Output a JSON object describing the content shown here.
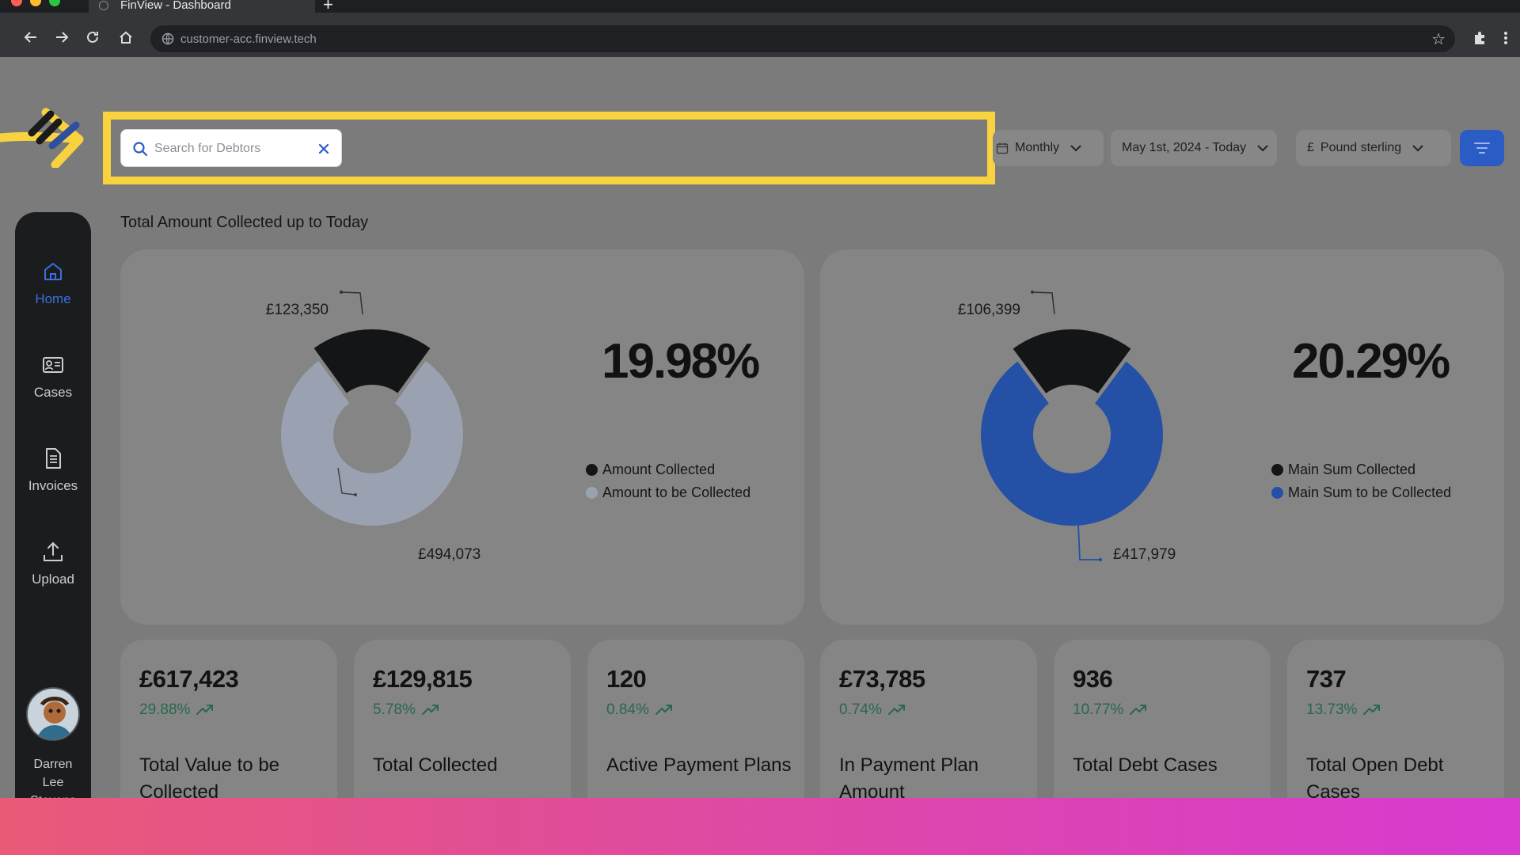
{
  "browser": {
    "tab_title": "FinView - Dashboard",
    "url": "customer-acc.finview.tech"
  },
  "search": {
    "placeholder": "Search for Debtors"
  },
  "filters": {
    "period": "Monthly",
    "date_range": "May 1st, 2024 - Today",
    "currency_symbol": "£",
    "currency": "Pound sterling"
  },
  "sidebar": {
    "items": [
      {
        "label": "Home",
        "icon": "home-icon",
        "active": true
      },
      {
        "label": "Cases",
        "icon": "id-card-icon",
        "active": false
      },
      {
        "label": "Invoices",
        "icon": "document-icon",
        "active": false
      },
      {
        "label": "Upload",
        "icon": "upload-icon",
        "active": false
      }
    ],
    "user": {
      "name_line1": "Darren",
      "name_line2": "Lee",
      "name_line3": "Stevens"
    }
  },
  "main": {
    "section_title": "Total Amount Collected up to Today"
  },
  "chart_data": [
    {
      "type": "pie",
      "categories": [
        "Amount Collected",
        "Amount to be Collected"
      ],
      "values": [
        123350,
        494073
      ],
      "value_labels": [
        "£123,350",
        "£494,073"
      ],
      "colors": [
        "#131516",
        "#9aa1b0"
      ],
      "percentage": "19.98%",
      "legend": "right"
    },
    {
      "type": "pie",
      "categories": [
        "Main Sum Collected",
        "Main Sum to be Collected"
      ],
      "values": [
        106399,
        417979
      ],
      "value_labels": [
        "£106,399",
        "£417,979"
      ],
      "colors": [
        "#131516",
        "#2450a6"
      ],
      "percentage": "20.29%",
      "legend": "right"
    }
  ],
  "stats": [
    {
      "value": "£617,423",
      "change": "29.88%",
      "label": "Total Value to be Collected"
    },
    {
      "value": "£129,815",
      "change": "5.78%",
      "label": "Total Collected"
    },
    {
      "value": "120",
      "change": "0.84%",
      "label": "Active Payment Plans"
    },
    {
      "value": "£73,785",
      "change": "0.74%",
      "label": "In Payment Plan Amount"
    },
    {
      "value": "936",
      "change": "10.77%",
      "label": "Total Debt Cases"
    },
    {
      "value": "737",
      "change": "13.73%",
      "label": "Total Open Debt Cases"
    }
  ],
  "colors": {
    "accent": "#2b5bc4",
    "highlight": "#f8d23f",
    "positive": "#27684c"
  }
}
